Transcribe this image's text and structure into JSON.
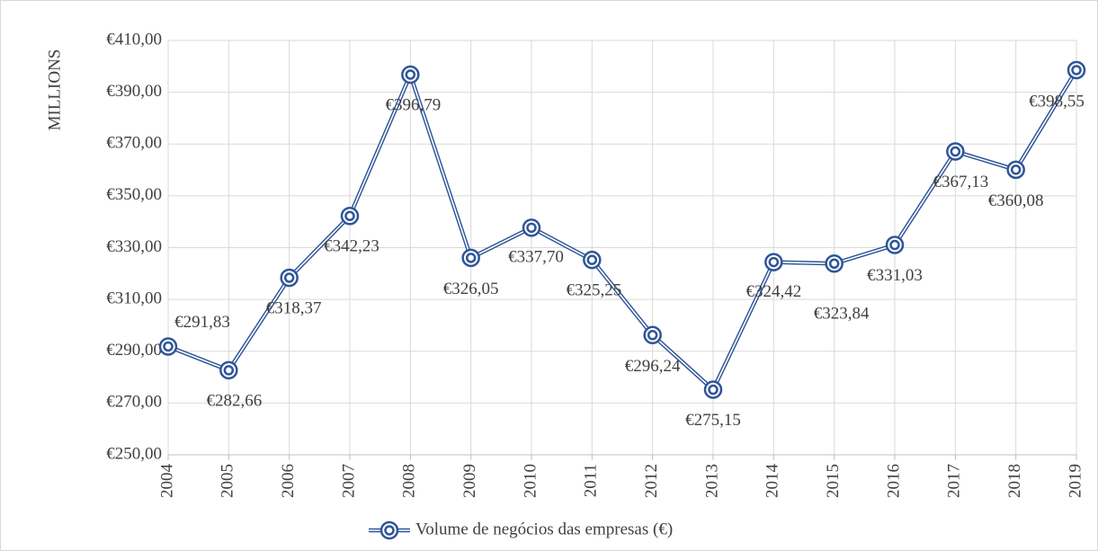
{
  "chart_data": {
    "type": "line",
    "ylabel": "MILLIONS",
    "categories": [
      "2004",
      "2005",
      "2006",
      "2007",
      "2008",
      "2009",
      "2010",
      "2011",
      "2012",
      "2013",
      "2014",
      "2015",
      "2016",
      "2017",
      "2018",
      "2019"
    ],
    "series": [
      {
        "name": "Volume de negócios das empresas (€)",
        "color": "#2f5597",
        "values": [
          291.83,
          282.66,
          318.37,
          342.23,
          396.79,
          326.05,
          337.7,
          325.25,
          296.24,
          275.15,
          324.42,
          323.84,
          331.03,
          367.13,
          360.08,
          398.55
        ],
        "value_labels": [
          "€291,83",
          "€282,66",
          "€318,37",
          "€342,23",
          "€396,79",
          "€326,05",
          "€337,70",
          "€325,25",
          "€296,24",
          "€275,15",
          "€324,42",
          "€323,84",
          "€331,03",
          "€367,13",
          "€360,08",
          "€398,55"
        ]
      }
    ],
    "ylim": [
      250,
      410
    ],
    "yticks": [
      {
        "value": 250,
        "label": "€250,00"
      },
      {
        "value": 270,
        "label": "€270,00"
      },
      {
        "value": 290,
        "label": "€290,00"
      },
      {
        "value": 310,
        "label": "€310,00"
      },
      {
        "value": 330,
        "label": "€330,00"
      },
      {
        "value": 350,
        "label": "€350,00"
      },
      {
        "value": 370,
        "label": "€370,00"
      },
      {
        "value": 390,
        "label": "€390,00"
      },
      {
        "value": 410,
        "label": "€410,00"
      }
    ],
    "grid": true,
    "legend": "bottom"
  }
}
